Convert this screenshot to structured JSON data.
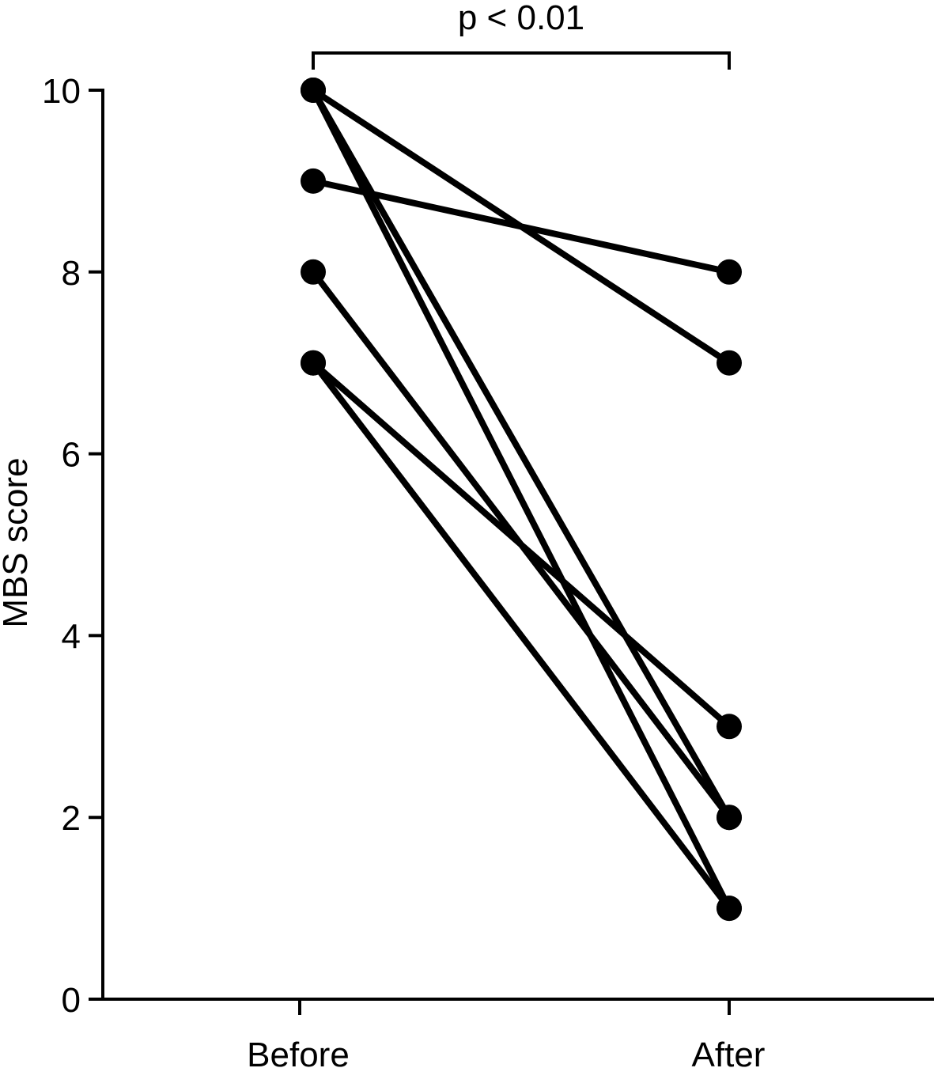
{
  "chart_data": {
    "type": "line",
    "title": "",
    "xlabel": "",
    "ylabel": "MBS score",
    "categories": [
      "Before",
      "After"
    ],
    "ylim": [
      0,
      10
    ],
    "yticks": [
      0,
      2,
      4,
      6,
      8,
      10
    ],
    "ytick_labels": [
      "0",
      "2",
      "4",
      "6",
      "8",
      "10"
    ],
    "grid": false,
    "legend": "none",
    "annotation": "p < 0.01",
    "marker_color": "#000000",
    "pairs": [
      {
        "before": 10,
        "after": 7
      },
      {
        "before": 10,
        "after": 1
      },
      {
        "before": 10,
        "after": 2
      },
      {
        "before": 9,
        "after": 8
      },
      {
        "before": 8,
        "after": 2
      },
      {
        "before": 7,
        "after": 3
      },
      {
        "before": 7,
        "after": 1
      }
    ]
  }
}
